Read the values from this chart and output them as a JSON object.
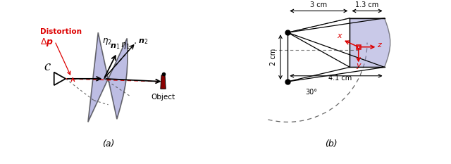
{
  "panel_a_label": "(a)",
  "panel_b_label": "(b)",
  "bg_color": "#ffffff",
  "blue_fill": "#8888cc",
  "red_color": "#dd0000",
  "black_color": "#000000",
  "dashed_color": "#444444",
  "measurements": {
    "top": "3 cm",
    "right": "1.3 cm",
    "left": "2 cm",
    "bottom": "4.1 cm",
    "angle": "30°"
  }
}
